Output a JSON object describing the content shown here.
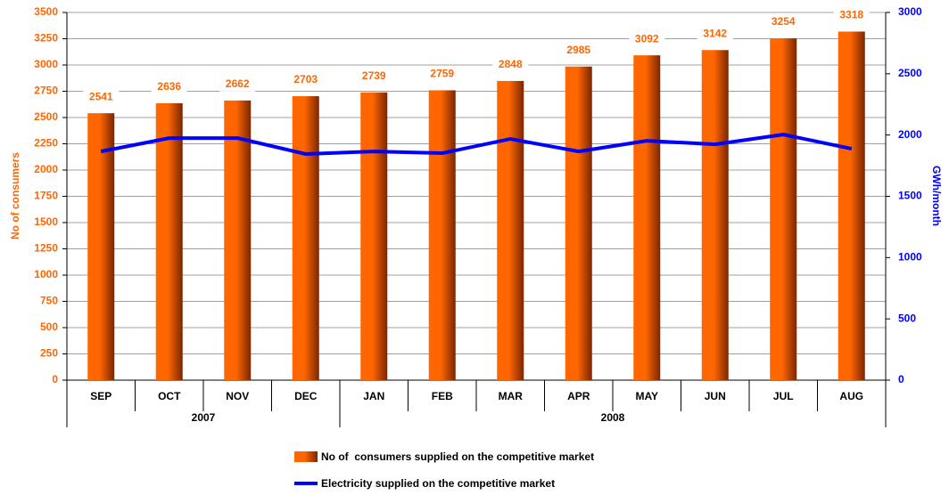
{
  "chart_data": {
    "type": "bar_line",
    "categories": [
      "SEP",
      "OCT",
      "NOV",
      "DEC",
      "JAN",
      "FEB",
      "MAR",
      "APR",
      "MAY",
      "JUN",
      "JUL",
      "AUG"
    ],
    "category_groups": [
      {
        "label": "2007",
        "count": 4
      },
      {
        "label": "2008",
        "count": 8
      }
    ],
    "series": [
      {
        "name": "No of  consumers supplied on the competitive market",
        "type": "bar",
        "color": "#ff6600",
        "values": [
          2541,
          2636,
          2662,
          2703,
          2739,
          2759,
          2848,
          2985,
          3092,
          3142,
          3254,
          3318
        ],
        "data_labels": true
      },
      {
        "name": "Electricity supplied on the competitive market",
        "type": "line",
        "axis": "y2",
        "color": "#0000ff",
        "values": [
          1866,
          1975,
          1975,
          1845,
          1866,
          1852,
          1968,
          1866,
          1953,
          1924,
          2004,
          1888
        ]
      }
    ],
    "ylabel": "No of consumers",
    "y2label": "GWh/month",
    "ylim": [
      0,
      3500
    ],
    "yticks": [
      0,
      250,
      500,
      750,
      1000,
      1250,
      1500,
      1750,
      2000,
      2250,
      2500,
      2750,
      3000,
      3250,
      3500
    ],
    "y2lim": [
      0,
      3000
    ],
    "y2ticks": [
      0,
      500,
      1000,
      1500,
      2000,
      2500,
      3000
    ],
    "grid": true,
    "legend": "bottom"
  }
}
